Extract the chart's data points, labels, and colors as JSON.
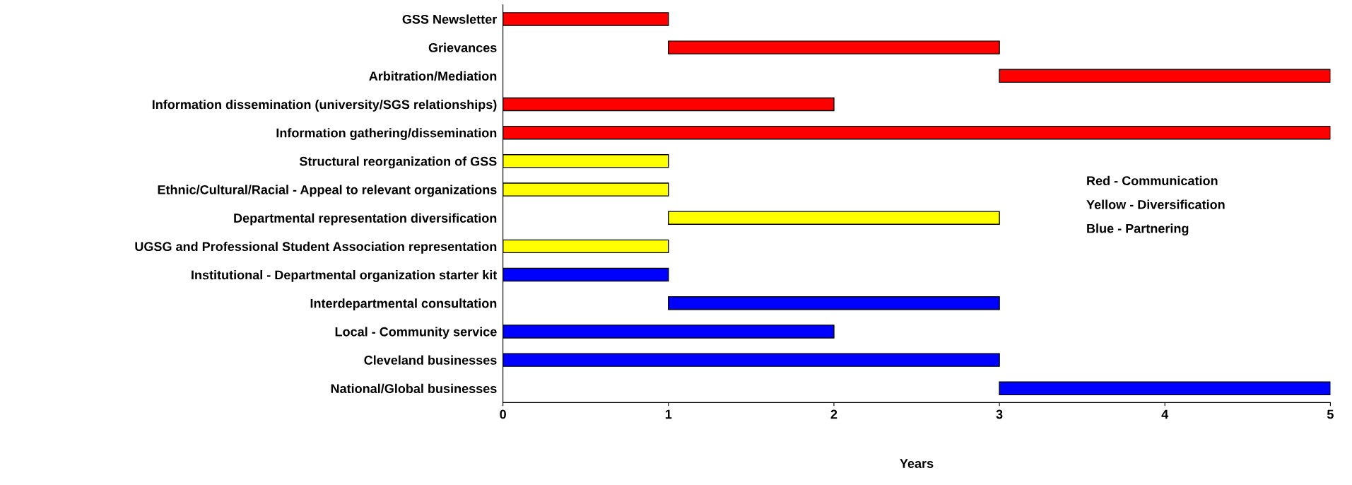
{
  "chart_data": {
    "type": "bar",
    "orientation": "horizontal",
    "xlabel": "Years",
    "categories": [
      "GSS Newsletter",
      "Grievances",
      "Arbitration/Mediation",
      "Information dissemination (university/SGS relationships)",
      "Information gathering/dissemination",
      "Structural reorganization of GSS",
      "Ethnic/Cultural/Racial - Appeal to relevant organizations",
      "Departmental representation diversification",
      "UGSG and Professional Student Association representation",
      "Institutional - Departmental organization starter kit",
      "Interdepartmental consultation",
      "Local - Community service",
      "Cleveland businesses",
      "National/Global businesses"
    ],
    "base": [
      0,
      1,
      3,
      0,
      0,
      0,
      0,
      1,
      0,
      0,
      1,
      0,
      0,
      3
    ],
    "values": [
      1,
      2,
      2,
      2,
      5,
      1,
      1,
      2,
      1,
      1,
      2,
      2,
      3,
      2
    ],
    "colors": [
      "#ff0000",
      "#ff0000",
      "#ff0000",
      "#ff0000",
      "#ff0000",
      "#ffff00",
      "#ffff00",
      "#ffff00",
      "#ffff00",
      "#0000ff",
      "#0000ff",
      "#0000ff",
      "#0000ff",
      "#0000ff"
    ],
    "xlim": [
      0,
      5
    ],
    "xticks": [
      0,
      1,
      2,
      3,
      4,
      5
    ],
    "grid": false,
    "legend": false,
    "annotations": [
      "Red - Communication",
      "Yellow - Diversification",
      "Blue - Partnering"
    ]
  }
}
